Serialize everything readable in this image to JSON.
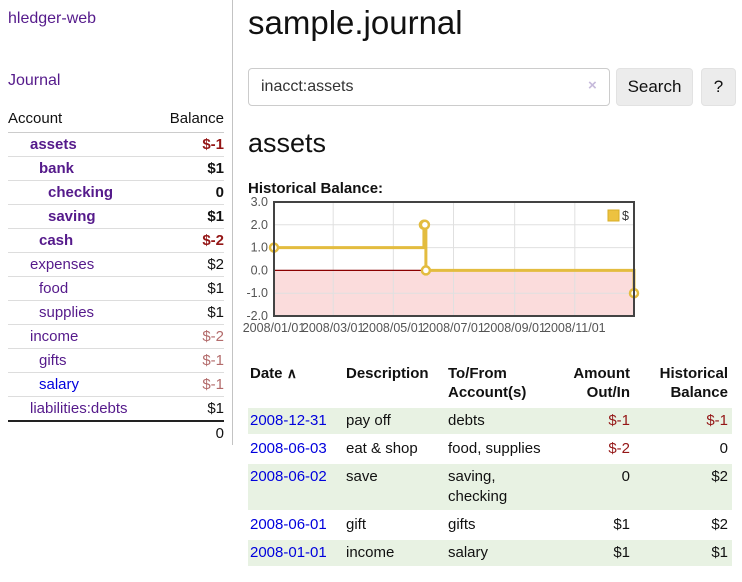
{
  "colors": {
    "link_visited": "#551a8b",
    "link_unvisited": "#0000dd",
    "negative_strong": "#941616",
    "negative_muted": "#b36b6b",
    "row_green": "#e8f2e3",
    "chart_line": "#e3bc3f",
    "chart_legend_fill": "#edc240",
    "chart_negative_fill": "#fbdcdc",
    "chart_zero_line": "#8b0000"
  },
  "sidebar": {
    "app_title": "hledger-web",
    "journal_link": "Journal",
    "accounts_table": {
      "header_account": "Account",
      "header_balance": "Balance",
      "rows": [
        {
          "name": "assets",
          "level": 1,
          "bold": true,
          "name_style": "visited",
          "balance": "$-1",
          "balance_style": "neg-strong"
        },
        {
          "name": "bank",
          "level": 2,
          "bold": true,
          "name_style": "visited",
          "balance": "$1",
          "balance_style": "pos"
        },
        {
          "name": "checking",
          "level": 3,
          "bold": true,
          "name_style": "visited",
          "balance": "0",
          "balance_style": "pos"
        },
        {
          "name": "saving",
          "level": 3,
          "bold": true,
          "name_style": "visited",
          "balance": "$1",
          "balance_style": "pos"
        },
        {
          "name": "cash",
          "level": 2,
          "bold": true,
          "name_style": "visited",
          "balance": "$-2",
          "balance_style": "neg-strong"
        },
        {
          "name": "expenses",
          "level": 1,
          "bold": false,
          "name_style": "visited",
          "balance": "$2",
          "balance_style": "pos"
        },
        {
          "name": "food",
          "level": 2,
          "bold": false,
          "name_style": "visited",
          "balance": "$1",
          "balance_style": "pos"
        },
        {
          "name": "supplies",
          "level": 2,
          "bold": false,
          "name_style": "visited",
          "balance": "$1",
          "balance_style": "pos"
        },
        {
          "name": "income",
          "level": 1,
          "bold": false,
          "name_style": "visited",
          "balance": "$-2",
          "balance_style": "neg-muted"
        },
        {
          "name": "gifts",
          "level": 2,
          "bold": false,
          "name_style": "visited",
          "balance": "$-1",
          "balance_style": "neg-muted"
        },
        {
          "name": "salary",
          "level": 2,
          "bold": false,
          "name_style": "unvisited",
          "balance": "$-1",
          "balance_style": "neg-muted"
        },
        {
          "name": "liabilities:debts",
          "level": 1,
          "bold": false,
          "name_style": "visited",
          "balance": "$1",
          "balance_style": "pos"
        }
      ],
      "total": "0"
    }
  },
  "main": {
    "title": "sample.journal",
    "search": {
      "value": "inacct:assets",
      "clear_icon": "×",
      "search_button": "Search",
      "help_button": "?"
    },
    "account_heading": "assets",
    "chart_heading": "Historical Balance:",
    "register_table": {
      "headers": {
        "date": "Date",
        "sort_indicator": "∧",
        "description": "Description",
        "accounts": "To/From Account(s)",
        "amount": "Amount Out/In",
        "balance": "Historical Balance"
      },
      "rows": [
        {
          "date": "2008-12-31",
          "description": "pay off",
          "accounts": "debts",
          "amount": "$-1",
          "amount_style": "neg-strong",
          "balance": "$-1",
          "balance_style": "neg-strong"
        },
        {
          "date": "2008-06-03",
          "description": "eat & shop",
          "accounts": "food, supplies",
          "amount": "$-2",
          "amount_style": "neg-strong",
          "balance": "0",
          "balance_style": "pos"
        },
        {
          "date": "2008-06-02",
          "description": "save",
          "accounts": "saving, checking",
          "amount": "0",
          "amount_style": "pos",
          "balance": "$2",
          "balance_style": "pos"
        },
        {
          "date": "2008-06-01",
          "description": "gift",
          "accounts": "gifts",
          "amount": "$1",
          "amount_style": "pos",
          "balance": "$2",
          "balance_style": "pos"
        },
        {
          "date": "2008-01-01",
          "description": "income",
          "accounts": "salary",
          "amount": "$1",
          "amount_style": "pos",
          "balance": "$1",
          "balance_style": "pos"
        }
      ]
    }
  },
  "chart_data": {
    "type": "line",
    "title": "Historical Balance:",
    "steps": true,
    "series": [
      {
        "name": "$",
        "points": [
          [
            "2008-01-01",
            1
          ],
          [
            "2008-06-01",
            2
          ],
          [
            "2008-06-02",
            2
          ],
          [
            "2008-06-03",
            0
          ],
          [
            "2008-12-31",
            -1
          ]
        ]
      }
    ],
    "x_range": [
      "2008-01-01",
      "2008-12-31"
    ],
    "ylim": [
      -2,
      3
    ],
    "yticks": [
      "3.0",
      "2.0",
      "1.0",
      "0.0",
      "-1.0",
      "-2.0"
    ],
    "ytick_values": [
      3,
      2,
      1,
      0,
      -1,
      -2
    ],
    "xticks": [
      "2008/01/01",
      "2008/03/01",
      "2008/05/01",
      "2008/07/01",
      "2008/09/01",
      "2008/11/01"
    ],
    "xtick_dates": [
      "2008-01-01",
      "2008-03-01",
      "2008-05-01",
      "2008-07-01",
      "2008-09-01",
      "2008-11-01"
    ],
    "grid": true,
    "legend_position": "top-right",
    "legend_label": "$"
  }
}
